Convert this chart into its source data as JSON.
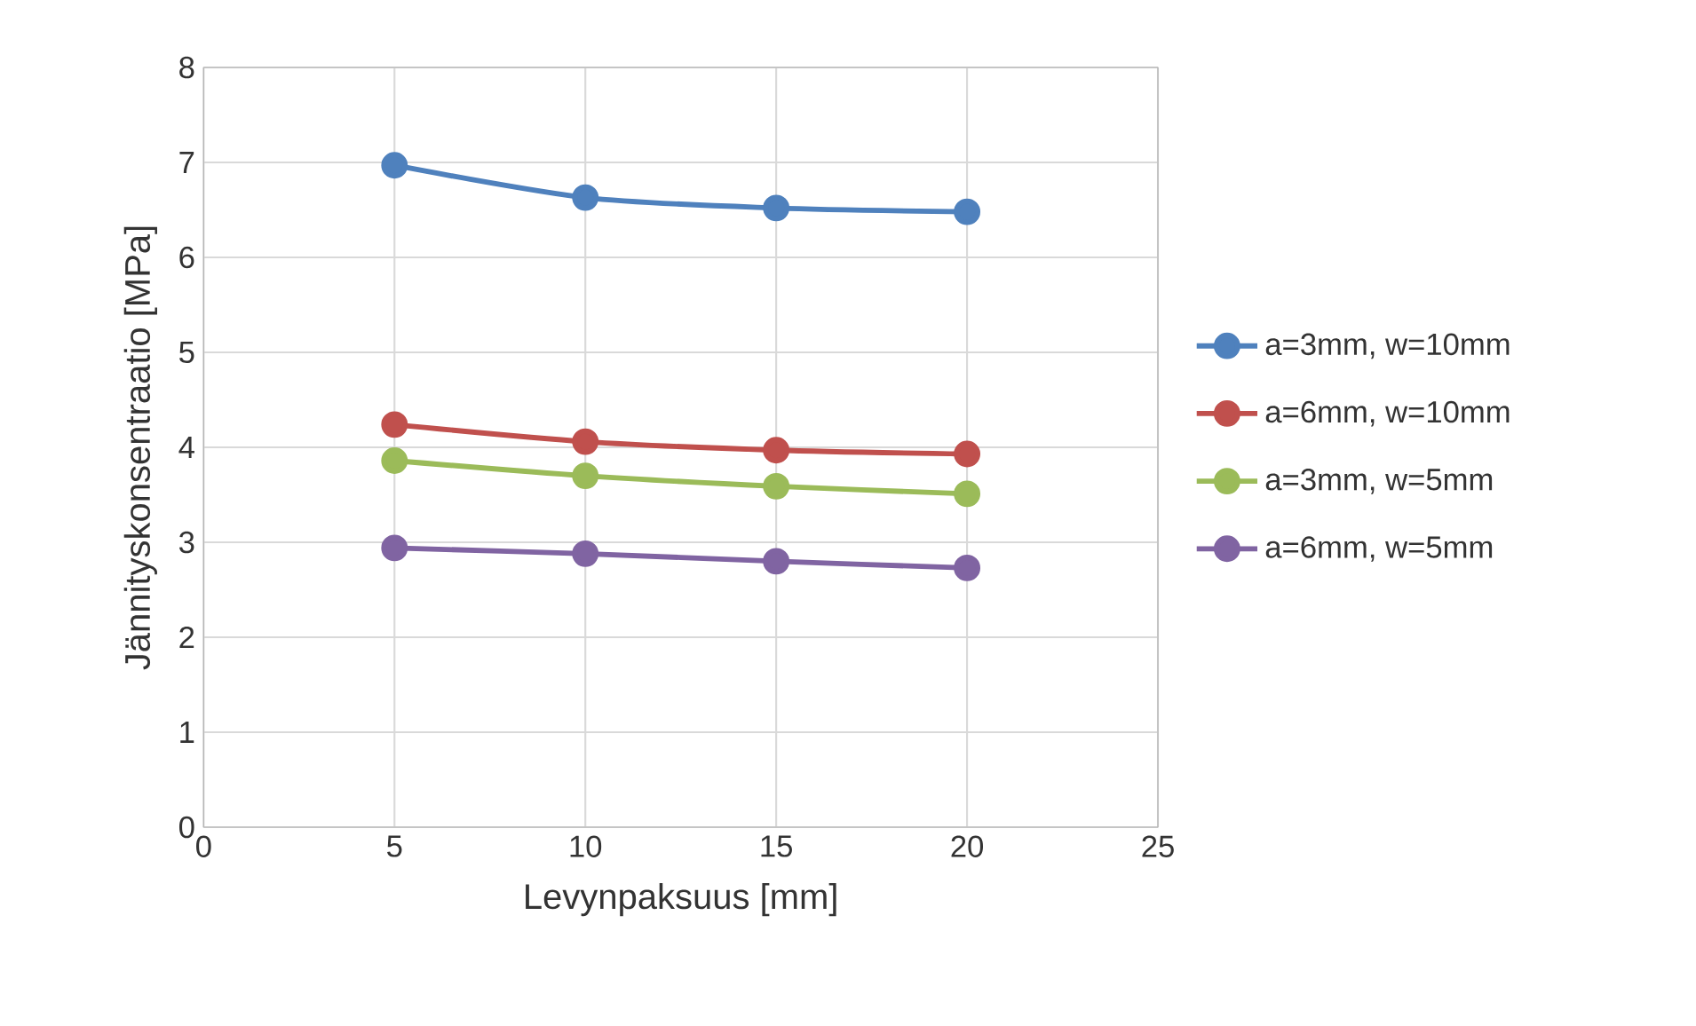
{
  "chart_data": {
    "type": "line",
    "xlabel": "Levynpaksuus [mm]",
    "ylabel": "Jännityskonsentraatio [MPa]",
    "x": [
      5,
      10,
      15,
      20
    ],
    "series": [
      {
        "name": "a=3mm, w=10mm",
        "color": "#4f81bd",
        "values": [
          6.97,
          6.63,
          6.52,
          6.48
        ]
      },
      {
        "name": "a=6mm, w=10mm",
        "color": "#c0504d",
        "values": [
          4.24,
          4.06,
          3.97,
          3.93
        ]
      },
      {
        "name": "a=3mm, w=5mm",
        "color": "#9bbb59",
        "values": [
          3.86,
          3.7,
          3.59,
          3.51
        ]
      },
      {
        "name": "a=6mm, w=5mm",
        "color": "#8064a2",
        "values": [
          2.94,
          2.88,
          2.8,
          2.73
        ]
      }
    ],
    "xlim": [
      0,
      25
    ],
    "xticks": [
      0,
      5,
      10,
      15,
      20,
      25
    ],
    "ylim": [
      0,
      8
    ],
    "yticks": [
      0,
      1,
      2,
      3,
      4,
      5,
      6,
      7,
      8
    ],
    "grid": true,
    "legend": "right",
    "marker": "circle",
    "line_style": "solid"
  }
}
